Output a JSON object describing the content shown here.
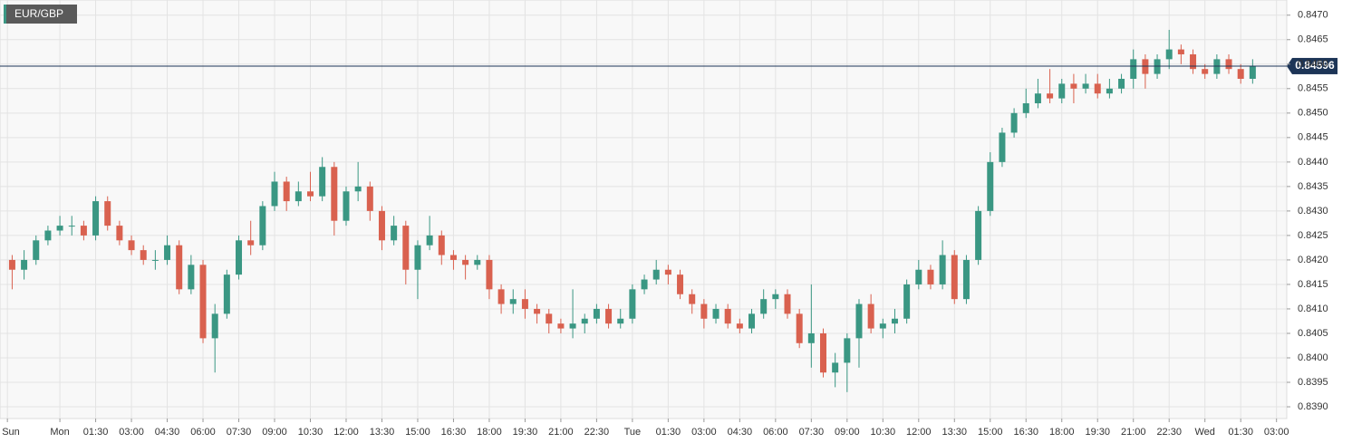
{
  "chart_data": {
    "type": "candlestick",
    "title": "EUR/GBP",
    "up_color": "#3a9783",
    "down_color": "#d9614f",
    "last_color": "#1d3557",
    "grid": true,
    "xlim": [
      -2.51,
      51.43
    ],
    "ylim": [
      0.83876,
      0.84731
    ],
    "xticks": [
      {
        "value": -2.2,
        "label": "Sun"
      },
      {
        "value": 0,
        "label": "Mon"
      },
      {
        "value": 1.5,
        "label": "01:30"
      },
      {
        "value": 3,
        "label": "03:00"
      },
      {
        "value": 4.5,
        "label": "04:30"
      },
      {
        "value": 6,
        "label": "06:00"
      },
      {
        "value": 7.5,
        "label": "07:30"
      },
      {
        "value": 9,
        "label": "09:00"
      },
      {
        "value": 10.5,
        "label": "10:30"
      },
      {
        "value": 12,
        "label": "12:00"
      },
      {
        "value": 13.5,
        "label": "13:30"
      },
      {
        "value": 15,
        "label": "15:00"
      },
      {
        "value": 16.5,
        "label": "16:30"
      },
      {
        "value": 18,
        "label": "18:00"
      },
      {
        "value": 19.5,
        "label": "19:30"
      },
      {
        "value": 21,
        "label": "21:00"
      },
      {
        "value": 22.5,
        "label": "22:30"
      },
      {
        "value": 24,
        "label": "Tue"
      },
      {
        "value": 25.5,
        "label": "01:30"
      },
      {
        "value": 27,
        "label": "03:00"
      },
      {
        "value": 28.5,
        "label": "04:30"
      },
      {
        "value": 30,
        "label": "06:00"
      },
      {
        "value": 31.5,
        "label": "07:30"
      },
      {
        "value": 33,
        "label": "09:00"
      },
      {
        "value": 34.5,
        "label": "10:30"
      },
      {
        "value": 36,
        "label": "12:00"
      },
      {
        "value": 37.5,
        "label": "13:30"
      },
      {
        "value": 39,
        "label": "15:00"
      },
      {
        "value": 40.5,
        "label": "16:30"
      },
      {
        "value": 42,
        "label": "18:00"
      },
      {
        "value": 43.5,
        "label": "19:30"
      },
      {
        "value": 45,
        "label": "21:00"
      },
      {
        "value": 46.5,
        "label": "22:30"
      },
      {
        "value": 48,
        "label": "Wed"
      },
      {
        "value": 49.5,
        "label": "01:30"
      },
      {
        "value": 51,
        "label": "03:00"
      }
    ],
    "yticks": [
      {
        "value": 0.839,
        "label": "0.8390"
      },
      0.8395,
      {
        "value": 0.84,
        "label": "0.8400"
      },
      0.8405,
      {
        "value": 0.841,
        "label": "0.8410"
      },
      0.8415,
      {
        "value": 0.842,
        "label": "0.8420"
      },
      0.8425,
      {
        "value": 0.843,
        "label": "0.8430"
      },
      0.8435,
      {
        "value": 0.844,
        "label": "0.8440"
      },
      0.8445,
      {
        "value": 0.845,
        "label": "0.8450"
      },
      0.8455,
      {
        "value": 0.846,
        "label": "0.8460"
      },
      0.8465,
      {
        "value": 0.847,
        "label": "0.8470"
      }
    ],
    "last_value": 0.84596,
    "x": [
      -2,
      -1.5,
      -1,
      -0.5,
      0,
      0.5,
      1,
      1.5,
      2,
      2.5,
      3,
      3.5,
      4,
      4.5,
      5,
      5.5,
      6,
      6.5,
      7,
      7.5,
      8,
      8.5,
      9,
      9.5,
      10,
      10.5,
      11,
      11.5,
      12,
      12.5,
      13,
      13.5,
      14,
      14.5,
      15,
      15.5,
      16,
      16.5,
      17,
      17.5,
      18,
      18.5,
      19,
      19.5,
      20,
      20.5,
      21,
      21.5,
      22,
      22.5,
      23,
      23.5,
      24,
      24.5,
      25,
      25.5,
      26,
      26.5,
      27,
      27.5,
      28,
      28.5,
      29,
      29.5,
      30,
      30.5,
      31,
      31.5,
      32,
      32.5,
      33,
      33.5,
      34,
      34.5,
      35,
      35.5,
      36,
      36.5,
      37,
      37.5,
      38,
      38.5,
      39,
      39.5,
      40,
      40.5,
      41,
      41.5,
      42,
      42.5,
      43,
      43.5,
      44,
      44.5,
      45,
      45.5,
      46,
      46.5,
      47,
      47.5,
      48,
      48.5,
      49,
      49.5,
      50
    ],
    "ohlc": [
      [
        0.842,
        0.8421,
        0.8414,
        0.8418
      ],
      [
        0.8418,
        0.8422,
        0.8416,
        0.842
      ],
      [
        0.842,
        0.8425,
        0.8419,
        0.8424
      ],
      [
        0.8424,
        0.8427,
        0.8423,
        0.8426
      ],
      [
        0.8426,
        0.8429,
        0.8425,
        0.8427
      ],
      [
        0.8427,
        0.8429,
        0.8425,
        0.8427
      ],
      [
        0.8427,
        0.8428,
        0.8424,
        0.8425
      ],
      [
        0.8425,
        0.8433,
        0.8424,
        0.8432
      ],
      [
        0.8432,
        0.8433,
        0.8426,
        0.8427
      ],
      [
        0.8427,
        0.8428,
        0.8423,
        0.8424
      ],
      [
        0.8424,
        0.8425,
        0.8421,
        0.8422
      ],
      [
        0.8422,
        0.8423,
        0.8419,
        0.842
      ],
      [
        0.842,
        0.8422,
        0.8418,
        0.842
      ],
      [
        0.842,
        0.8425,
        0.8419,
        0.8423
      ],
      [
        0.8423,
        0.8424,
        0.8413,
        0.8414
      ],
      [
        0.8414,
        0.8421,
        0.8413,
        0.8419
      ],
      [
        0.8419,
        0.842,
        0.8403,
        0.8404
      ],
      [
        0.8404,
        0.8411,
        0.8397,
        0.8409
      ],
      [
        0.8409,
        0.8418,
        0.8408,
        0.8417
      ],
      [
        0.8417,
        0.8425,
        0.8416,
        0.8424
      ],
      [
        0.8424,
        0.8428,
        0.8421,
        0.8423
      ],
      [
        0.8423,
        0.8432,
        0.8422,
        0.8431
      ],
      [
        0.8431,
        0.8438,
        0.843,
        0.8436
      ],
      [
        0.8436,
        0.8437,
        0.843,
        0.8432
      ],
      [
        0.8432,
        0.8436,
        0.8431,
        0.8434
      ],
      [
        0.8434,
        0.8438,
        0.8432,
        0.8433
      ],
      [
        0.8433,
        0.8441,
        0.8432,
        0.8439
      ],
      [
        0.8439,
        0.844,
        0.8425,
        0.8428
      ],
      [
        0.8428,
        0.8435,
        0.8427,
        0.8434
      ],
      [
        0.8434,
        0.844,
        0.8432,
        0.8435
      ],
      [
        0.8435,
        0.8436,
        0.8428,
        0.843
      ],
      [
        0.843,
        0.8431,
        0.8422,
        0.8424
      ],
      [
        0.8424,
        0.8429,
        0.8423,
        0.8427
      ],
      [
        0.8427,
        0.8428,
        0.8415,
        0.8418
      ],
      [
        0.8418,
        0.8424,
        0.8412,
        0.8423
      ],
      [
        0.8423,
        0.8429,
        0.8422,
        0.8425
      ],
      [
        0.8425,
        0.8426,
        0.8419,
        0.8421
      ],
      [
        0.8421,
        0.8422,
        0.8418,
        0.842
      ],
      [
        0.842,
        0.8421,
        0.8416,
        0.8419
      ],
      [
        0.8419,
        0.8421,
        0.8418,
        0.842
      ],
      [
        0.842,
        0.8421,
        0.8412,
        0.8414
      ],
      [
        0.8414,
        0.8415,
        0.8409,
        0.8411
      ],
      [
        0.8411,
        0.8414,
        0.8409,
        0.8412
      ],
      [
        0.8412,
        0.8414,
        0.8408,
        0.841
      ],
      [
        0.841,
        0.8411,
        0.8407,
        0.8409
      ],
      [
        0.8409,
        0.841,
        0.8405,
        0.8407
      ],
      [
        0.8407,
        0.8408,
        0.8405,
        0.8406
      ],
      [
        0.8406,
        0.8414,
        0.8404,
        0.8407
      ],
      [
        0.8407,
        0.8409,
        0.8405,
        0.8408
      ],
      [
        0.8408,
        0.8411,
        0.8407,
        0.841
      ],
      [
        0.841,
        0.8411,
        0.8406,
        0.8407
      ],
      [
        0.8407,
        0.841,
        0.8406,
        0.8408
      ],
      [
        0.8408,
        0.8415,
        0.8407,
        0.8414
      ],
      [
        0.8414,
        0.8417,
        0.8413,
        0.8416
      ],
      [
        0.8416,
        0.842,
        0.8415,
        0.8418
      ],
      [
        0.8418,
        0.8419,
        0.8415,
        0.8417
      ],
      [
        0.8417,
        0.8418,
        0.8412,
        0.8413
      ],
      [
        0.8413,
        0.8414,
        0.8409,
        0.8411
      ],
      [
        0.8411,
        0.8412,
        0.8406,
        0.8408
      ],
      [
        0.8408,
        0.8411,
        0.8407,
        0.841
      ],
      [
        0.841,
        0.8411,
        0.8406,
        0.8407
      ],
      [
        0.8407,
        0.8408,
        0.8405,
        0.8406
      ],
      [
        0.8406,
        0.841,
        0.8405,
        0.8409
      ],
      [
        0.8409,
        0.8414,
        0.8408,
        0.8412
      ],
      [
        0.8412,
        0.8414,
        0.841,
        0.8413
      ],
      [
        0.8413,
        0.8414,
        0.8408,
        0.8409
      ],
      [
        0.8409,
        0.841,
        0.8402,
        0.8403
      ],
      [
        0.8403,
        0.8415,
        0.8398,
        0.8405
      ],
      [
        0.8405,
        0.8406,
        0.8396,
        0.8397
      ],
      [
        0.8397,
        0.8401,
        0.8394,
        0.8399
      ],
      [
        0.8399,
        0.8405,
        0.8393,
        0.8404
      ],
      [
        0.8404,
        0.8412,
        0.8398,
        0.8411
      ],
      [
        0.8411,
        0.8413,
        0.8405,
        0.8406
      ],
      [
        0.8406,
        0.8408,
        0.8404,
        0.8407
      ],
      [
        0.8407,
        0.841,
        0.8405,
        0.8408
      ],
      [
        0.8408,
        0.8416,
        0.8407,
        0.8415
      ],
      [
        0.8415,
        0.842,
        0.8414,
        0.8418
      ],
      [
        0.8418,
        0.8419,
        0.8414,
        0.8415
      ],
      [
        0.8415,
        0.8424,
        0.8414,
        0.8421
      ],
      [
        0.8421,
        0.8422,
        0.8411,
        0.8412
      ],
      [
        0.8412,
        0.8421,
        0.8411,
        0.842
      ],
      [
        0.842,
        0.8431,
        0.8419,
        0.843
      ],
      [
        0.843,
        0.8442,
        0.8429,
        0.844
      ],
      [
        0.844,
        0.8447,
        0.8439,
        0.8446
      ],
      [
        0.8446,
        0.8451,
        0.8445,
        0.845
      ],
      [
        0.845,
        0.8455,
        0.8449,
        0.8452
      ],
      [
        0.8452,
        0.8457,
        0.8451,
        0.8454
      ],
      [
        0.8454,
        0.8459,
        0.8452,
        0.8453
      ],
      [
        0.8453,
        0.8457,
        0.8452,
        0.8456
      ],
      [
        0.8456,
        0.8458,
        0.8452,
        0.8455
      ],
      [
        0.8455,
        0.8458,
        0.8454,
        0.8456
      ],
      [
        0.8456,
        0.8458,
        0.8453,
        0.8454
      ],
      [
        0.8454,
        0.8457,
        0.8453,
        0.8455
      ],
      [
        0.8455,
        0.8458,
        0.8454,
        0.8457
      ],
      [
        0.8457,
        0.8463,
        0.8455,
        0.8461
      ],
      [
        0.8461,
        0.8462,
        0.8455,
        0.8458
      ],
      [
        0.8458,
        0.8462,
        0.8457,
        0.8461
      ],
      [
        0.8461,
        0.8467,
        0.8459,
        0.8463
      ],
      [
        0.8463,
        0.8464,
        0.846,
        0.8462
      ],
      [
        0.8462,
        0.8463,
        0.8458,
        0.8459
      ],
      [
        0.8459,
        0.846,
        0.8457,
        0.8458
      ],
      [
        0.8458,
        0.8462,
        0.8457,
        0.8461
      ],
      [
        0.8461,
        0.8462,
        0.8458,
        0.8459
      ],
      [
        0.8459,
        0.846,
        0.8456,
        0.8457
      ],
      [
        0.8457,
        0.8461,
        0.8456,
        0.84596
      ]
    ]
  }
}
